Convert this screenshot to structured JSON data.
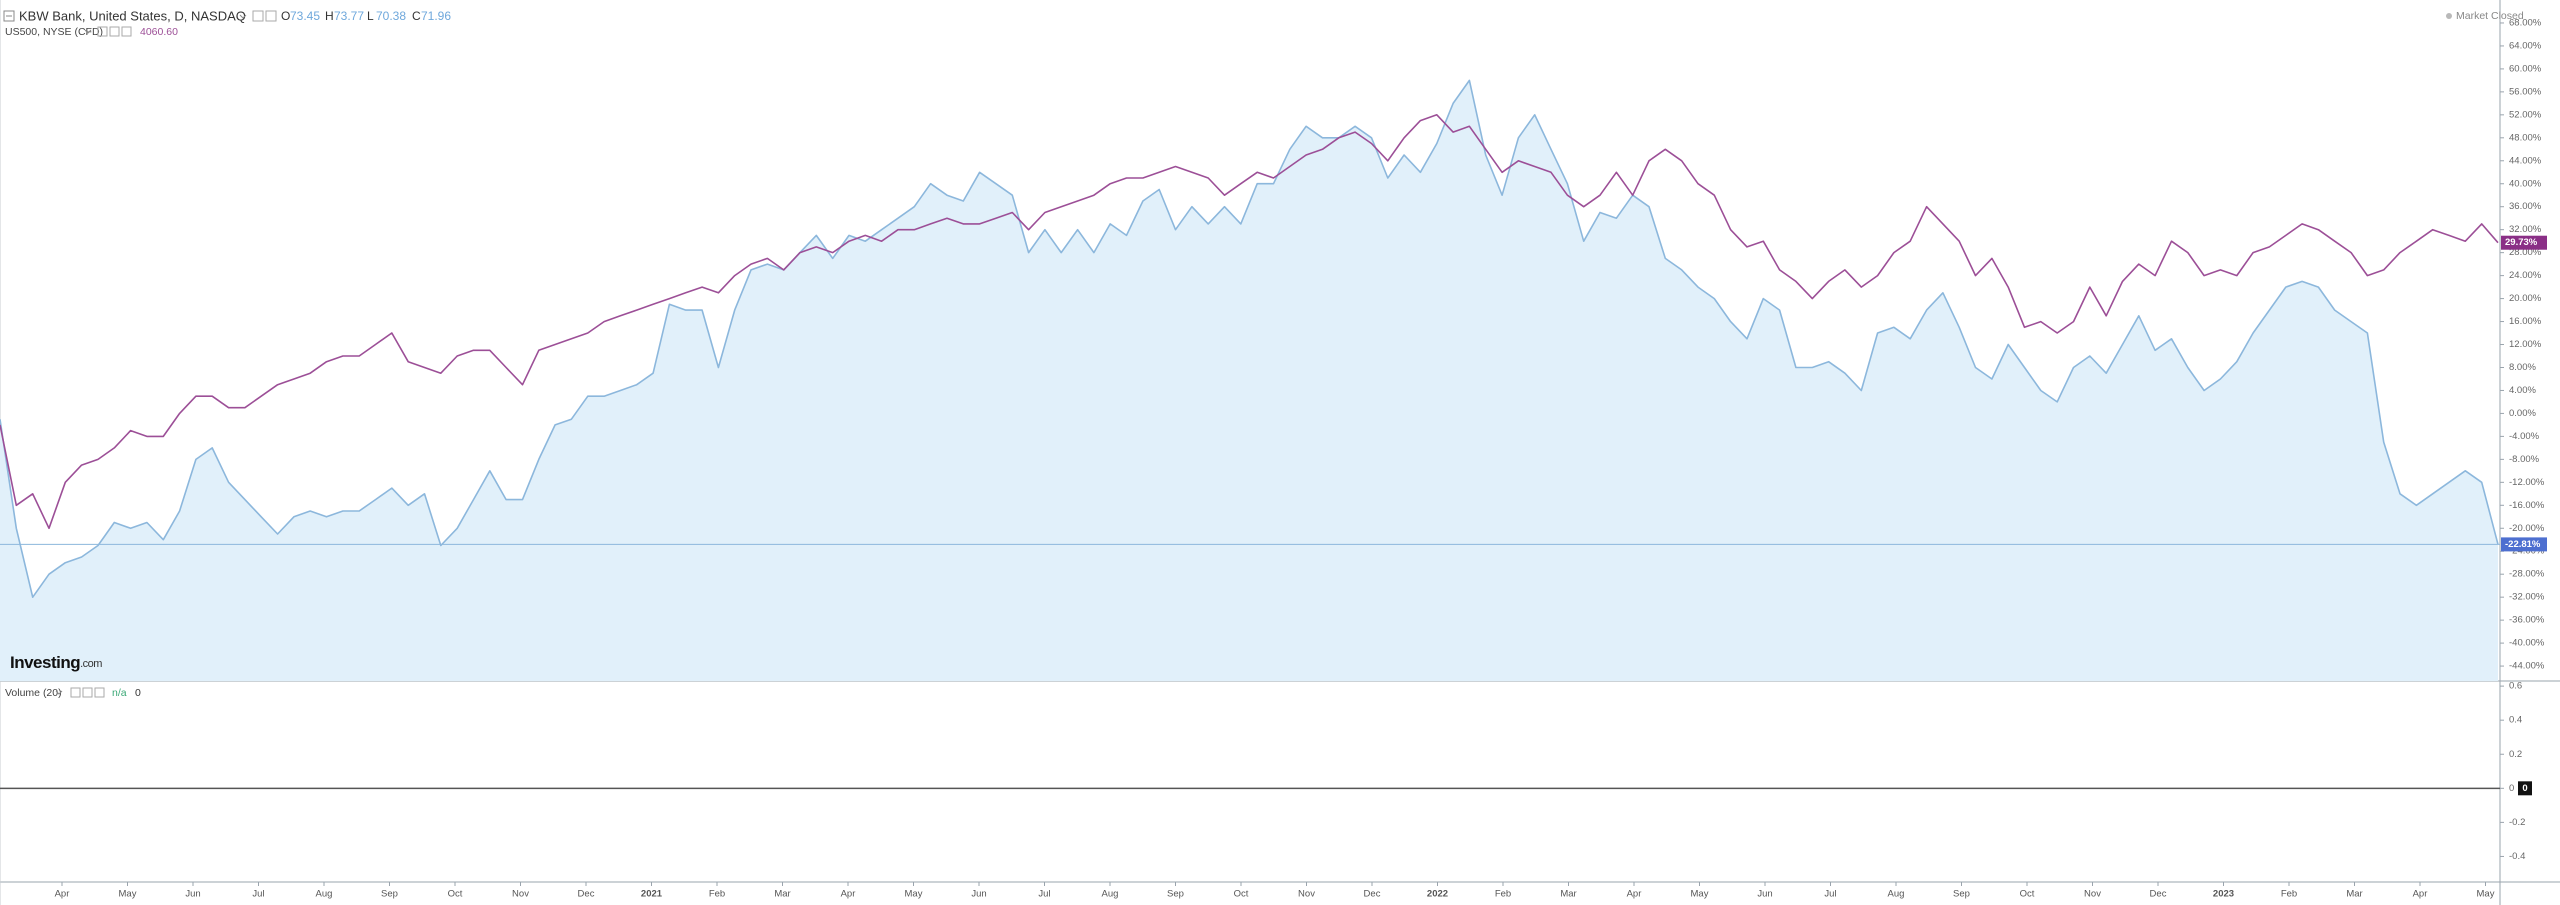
{
  "chart_data": [
    {
      "type": "line",
      "market_status": "Market Closed",
      "logo_main": "Investing",
      "logo_suffix": ".com",
      "ohlc": [
        {
          "label": "O",
          "value": 73.45
        },
        {
          "label": "H",
          "value": 73.77
        },
        {
          "label": "L",
          "value": 70.38
        },
        {
          "label": "C",
          "value": 71.96
        }
      ],
      "x_labels": [
        "Apr",
        "May",
        "Jun",
        "Jul",
        "Aug",
        "Sep",
        "Oct",
        "Nov",
        "Dec",
        "2021",
        "Feb",
        "Mar",
        "Apr",
        "May",
        "Jun",
        "Jul",
        "Aug",
        "Sep",
        "Oct",
        "Nov",
        "Dec",
        "2022",
        "Feb",
        "Mar",
        "Apr",
        "May",
        "Jun",
        "Jul",
        "Aug",
        "Sep",
        "Oct",
        "Nov",
        "Dec",
        "2023",
        "Feb",
        "Mar",
        "Apr",
        "May"
      ],
      "ylim": [
        -46.6,
        72
      ],
      "yticks": [
        {
          "value": 68,
          "label": "68.00%"
        },
        {
          "value": 64,
          "label": "64.00%"
        },
        {
          "value": 60,
          "label": "60.00%"
        },
        {
          "value": 56,
          "label": "56.00%"
        },
        {
          "value": 52,
          "label": "52.00%"
        },
        {
          "value": 48,
          "label": "48.00%"
        },
        {
          "value": 44,
          "label": "44.00%"
        },
        {
          "value": 40,
          "label": "40.00%"
        },
        {
          "value": 36,
          "label": "36.00%"
        },
        {
          "value": 32,
          "label": "32.00%"
        },
        {
          "value": 28,
          "label": "28.00%"
        },
        {
          "value": 24,
          "label": "24.00%"
        },
        {
          "value": 20,
          "label": "20.00%"
        },
        {
          "value": 16,
          "label": "16.00%"
        },
        {
          "value": 12,
          "label": "12.00%"
        },
        {
          "value": 8,
          "label": "8.00%"
        },
        {
          "value": 4,
          "label": "4.00%"
        },
        {
          "value": 0,
          "label": "0.00%"
        },
        {
          "value": -4,
          "label": "-4.00%"
        },
        {
          "value": -8,
          "label": "-8.00%"
        },
        {
          "value": -12,
          "label": "-12.00%"
        },
        {
          "value": -16,
          "label": "-16.00%"
        },
        {
          "value": -20,
          "label": "-20.00%"
        },
        {
          "value": -24,
          "label": "-24.00%"
        },
        {
          "value": -28,
          "label": "-28.00%"
        },
        {
          "value": -32,
          "label": "-32.00%"
        },
        {
          "value": -36,
          "label": "-36.00%"
        },
        {
          "value": -40,
          "label": "-40.00%"
        },
        {
          "value": -44,
          "label": "-44.00%"
        }
      ],
      "series": [
        {
          "name": "KBW Bank, United States, D, NASDAQ",
          "color": "#8cb7dc",
          "fill": "#e1f0fa",
          "label_color": "#4d6fd0",
          "last_label": "-22.81%",
          "values": [
            -1,
            -20,
            -32,
            -28,
            -26,
            -25,
            -23,
            -19,
            -20,
            -19,
            -22,
            -17,
            -8,
            -6,
            -12,
            -15,
            -18,
            -21,
            -18,
            -17,
            -18,
            -17,
            -17,
            -15,
            -13,
            -16,
            -14,
            -23,
            -20,
            -15,
            -10,
            -15,
            -15,
            -8,
            -2,
            -1,
            3,
            3,
            4,
            5,
            7,
            19,
            18,
            18,
            8,
            18,
            25,
            26,
            25,
            28,
            31,
            27,
            31,
            30,
            32,
            34,
            36,
            40,
            38,
            37,
            42,
            40,
            38,
            28,
            32,
            28,
            32,
            28,
            33,
            31,
            37,
            39,
            32,
            36,
            33,
            36,
            33,
            40,
            40,
            46,
            50,
            48,
            48,
            50,
            48,
            41,
            45,
            42,
            47,
            54,
            58,
            45,
            38,
            48,
            52,
            46,
            40,
            30,
            35,
            34,
            38,
            36,
            27,
            25,
            22,
            20,
            16,
            13,
            20,
            18,
            8,
            8,
            9,
            7,
            4,
            14,
            15,
            13,
            18,
            21,
            15,
            8,
            6,
            12,
            8,
            4,
            2,
            8,
            10,
            7,
            12,
            17,
            11,
            13,
            8,
            4,
            6,
            9,
            14,
            18,
            22,
            23,
            22,
            18,
            16,
            14,
            -5,
            -14,
            -16,
            -14,
            -12,
            -10,
            -12,
            -22.81
          ]
        },
        {
          "name": "US500, NYSE (CFD)",
          "color": "#9c4f97",
          "label_color": "#8a2f86",
          "last_label": "29.73%",
          "price": {
            "value": 4060.6,
            "label": "4060.60"
          },
          "values": [
            -2,
            -16,
            -14,
            -20,
            -12,
            -9,
            -8,
            -6,
            -3,
            -4,
            -4,
            0,
            3,
            3,
            1,
            1,
            3,
            5,
            6,
            7,
            9,
            10,
            10,
            12,
            14,
            9,
            8,
            7,
            10,
            11,
            11,
            8,
            5,
            11,
            12,
            13,
            14,
            16,
            17,
            18,
            19,
            20,
            21,
            22,
            21,
            24,
            26,
            27,
            25,
            28,
            29,
            28,
            30,
            31,
            30,
            32,
            32,
            33,
            34,
            33,
            33,
            34,
            35,
            32,
            35,
            36,
            37,
            38,
            40,
            41,
            41,
            42,
            43,
            42,
            41,
            38,
            40,
            42,
            41,
            43,
            45,
            46,
            48,
            49,
            47,
            44,
            48,
            51,
            52,
            49,
            50,
            46,
            42,
            44,
            43,
            42,
            38,
            36,
            38,
            42,
            38,
            44,
            46,
            44,
            40,
            38,
            32,
            29,
            30,
            25,
            23,
            20,
            23,
            25,
            22,
            24,
            28,
            30,
            36,
            33,
            30,
            24,
            27,
            22,
            15,
            16,
            14,
            16,
            22,
            17,
            23,
            26,
            24,
            30,
            28,
            24,
            25,
            24,
            28,
            29,
            31,
            33,
            32,
            30,
            28,
            24,
            25,
            28,
            30,
            32,
            31,
            30,
            33,
            29.73
          ]
        }
      ]
    },
    {
      "type": "volume",
      "title": "Volume (20)",
      "value_label": "n/a",
      "value": 0,
      "ylim": [
        -0.55,
        0.63
      ],
      "yticks": [
        0.6,
        0.4,
        0.2,
        0,
        -0.2,
        -0.4
      ]
    }
  ]
}
